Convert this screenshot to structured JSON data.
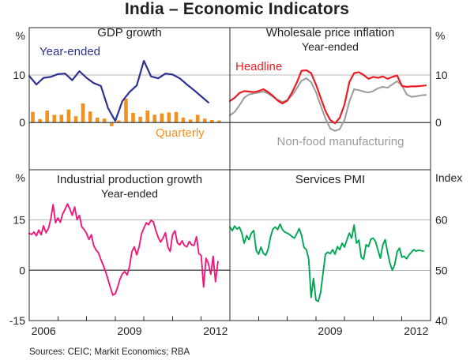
{
  "page": {
    "title": "India – Economic Indicators",
    "source_note": "Sources: CEIC; Markit Economics; RBA"
  },
  "colors": {
    "blue": "#2e3192",
    "orange": "#f4911e",
    "red": "#ed1c24",
    "gray": "#9b9b9b",
    "magenta": "#ed1a7b",
    "green": "#00a651",
    "grid": "#b9b9b9",
    "zero_line": "#58595b",
    "border": "#2b2a29",
    "text": "#231f20"
  },
  "chart_data": [
    {
      "type": "line+bar",
      "title": "GDP growth",
      "position": "top-left",
      "unit": "%",
      "xlim": [
        2006,
        2013
      ],
      "ylim": [
        -10,
        20
      ],
      "gridlines": [
        {
          "value": 10,
          "dark": false
        },
        {
          "value": 0,
          "dark": true
        }
      ],
      "ytick_labels": [
        {
          "value": 10,
          "label": "10"
        },
        {
          "value": 0,
          "label": "0"
        }
      ],
      "xticks": [],
      "xtick_labels": [],
      "series": [
        {
          "name": "Quarterly",
          "type": "bar",
          "color_key": "orange",
          "x_start": 2006.125,
          "x_step": 0.25,
          "values": [
            2.2,
            0.7,
            2.5,
            1.6,
            1.6,
            2.7,
            1.3,
            4.0,
            2.3,
            1.0,
            0.8,
            -0.8,
            0.4,
            5.0,
            2.0,
            1.2,
            2.5,
            1.6,
            1.9,
            2.1,
            2.2,
            1.0,
            0.6,
            1.6,
            0.8,
            0.5,
            0.4
          ]
        },
        {
          "name": "Year-ended",
          "type": "line",
          "color_key": "blue",
          "width": 2.2,
          "x_start": 2006.0,
          "x_step": 0.25,
          "values": [
            9.8,
            8.0,
            9.4,
            9.6,
            10.2,
            10.3,
            8.9,
            10.8,
            9.4,
            8.3,
            7.7,
            3.0,
            0.3,
            4.5,
            6.4,
            7.8,
            13.0,
            9.7,
            9.3,
            10.3,
            10.1,
            9.3,
            8.0,
            6.8,
            5.5,
            4.2
          ]
        }
      ]
    },
    {
      "type": "line",
      "title": "Wholesale price inflation",
      "subtitle": "Year-ended",
      "position": "top-right",
      "unit": "%",
      "xlim": [
        2006,
        2013
      ],
      "ylim": [
        -10,
        20
      ],
      "gridlines": [
        {
          "value": 10,
          "dark": false
        },
        {
          "value": 0,
          "dark": true
        }
      ],
      "ytick_labels": [
        {
          "value": 10,
          "label": "10"
        },
        {
          "value": 0,
          "label": "0"
        }
      ],
      "xticks": [],
      "xtick_labels": [],
      "series": [
        {
          "name": "Non-food manufacturing",
          "type": "line",
          "color_key": "gray",
          "width": 2,
          "x_start": 2006.0,
          "x_step": 0.16667,
          "values": [
            1.5,
            2.2,
            3.6,
            5.2,
            5.9,
            6.1,
            6.3,
            6.5,
            6.1,
            5.4,
            4.8,
            4.3,
            4.7,
            5.7,
            7.2,
            8.8,
            9.3,
            8.5,
            6.4,
            3.6,
            0.8,
            -1.3,
            -1.8,
            -1.4,
            0.5,
            4.4,
            7.0,
            6.8,
            6.5,
            6.3,
            6.6,
            7.2,
            7.5,
            7.3,
            8.0,
            8.7,
            7.8,
            5.9,
            5.4,
            5.5,
            5.7,
            5.8
          ]
        },
        {
          "name": "Headline",
          "type": "line",
          "color_key": "red",
          "width": 2.2,
          "x_start": 2006.0,
          "x_step": 0.16667,
          "values": [
            4.5,
            5.2,
            6.2,
            6.6,
            6.5,
            6.4,
            6.6,
            7.0,
            6.4,
            5.6,
            4.6,
            4.0,
            4.6,
            6.3,
            8.4,
            10.9,
            11.0,
            10.4,
            8.0,
            5.2,
            2.4,
            0.5,
            -0.2,
            1.0,
            3.8,
            8.5,
            10.4,
            10.6,
            10.0,
            9.2,
            9.6,
            9.4,
            9.7,
            9.2,
            9.6,
            9.9,
            7.7,
            7.5,
            7.6,
            7.6,
            7.7,
            7.8
          ]
        }
      ]
    },
    {
      "type": "line",
      "title": "Industrial production growth",
      "subtitle": "Year-ended",
      "position": "bottom-left",
      "unit": "%",
      "xlim": [
        2006,
        2013
      ],
      "ylim": [
        -15,
        30
      ],
      "gridlines": [
        {
          "value": 15,
          "dark": false
        },
        {
          "value": 0,
          "dark": true
        }
      ],
      "ytick_labels": [
        {
          "value": 15,
          "label": "15"
        },
        {
          "value": 0,
          "label": "0"
        },
        {
          "value": -15,
          "label": "-15"
        }
      ],
      "xticks": [
        2007,
        2008,
        2009,
        2010,
        2011,
        2012
      ],
      "xtick_labels": [
        {
          "x": 2006.5,
          "label": "2006"
        },
        {
          "x": 2009.5,
          "label": "2009"
        },
        {
          "x": 2012.5,
          "label": "2012"
        }
      ],
      "series": [
        {
          "name": "Year-ended",
          "type": "line",
          "color_key": "magenta",
          "width": 1.9,
          "x_start": 2006.0,
          "x_step": 0.08333,
          "values": [
            11.0,
            10.7,
            11.4,
            10.3,
            12.0,
            10.6,
            13.3,
            11.2,
            12.4,
            15.2,
            19.6,
            14.2,
            15.6,
            14.3,
            16.8,
            18.2,
            19.8,
            18.3,
            16.4,
            18.9,
            15.1,
            16.4,
            13.0,
            12.2,
            11.0,
            9.2,
            10.6,
            7.4,
            6.0,
            5.2,
            3.2,
            1.5,
            -0.5,
            -2.8,
            -5.2,
            -7.4,
            -7.0,
            -5.0,
            -2.6,
            -1.0,
            -0.4,
            -1.4,
            1.2,
            5.6,
            7.0,
            4.6,
            7.0,
            10.8,
            12.6,
            14.2,
            13.6,
            15.0,
            14.4,
            11.8,
            9.8,
            8.4,
            9.6,
            11.2,
            7.0,
            5.6,
            10.6,
            11.8,
            8.2,
            7.6,
            8.8,
            7.4,
            7.0,
            8.6,
            7.6,
            7.4,
            10.0,
            5.0,
            4.4,
            -5.0,
            3.6,
            2.0,
            -1.2,
            4.2,
            -3.4,
            2.6
          ]
        }
      ]
    },
    {
      "type": "line",
      "title": "Services PMI",
      "position": "bottom-right",
      "unit": "Index",
      "xlim": [
        2006,
        2013
      ],
      "ylim": [
        40,
        70
      ],
      "gridlines": [
        {
          "value": 60,
          "dark": false
        },
        {
          "value": 50,
          "dark": false
        }
      ],
      "ytick_labels": [
        {
          "value": 60,
          "label": "60"
        },
        {
          "value": 50,
          "label": "50"
        },
        {
          "value": 40,
          "label": "40"
        }
      ],
      "xticks": [
        2007,
        2008,
        2009,
        2010,
        2011,
        2012
      ],
      "xtick_labels": [
        {
          "x": 2009.5,
          "label": "2009"
        },
        {
          "x": 2012.5,
          "label": "2012"
        }
      ],
      "series": [
        {
          "name": "Services PMI",
          "type": "line",
          "color_key": "green",
          "width": 1.9,
          "x_start": 2006.0,
          "x_step": 0.08333,
          "values": [
            58.6,
            57.9,
            58.8,
            58.2,
            58.6,
            57.4,
            55.4,
            56.9,
            56.1,
            57.4,
            57.9,
            54.0,
            53.2,
            54.6,
            53.4,
            53.0,
            54.2,
            56.6,
            58.2,
            58.6,
            58.1,
            59.2,
            58.1,
            57.6,
            57.4,
            57.1,
            56.7,
            56.4,
            57.3,
            58.3,
            57.0,
            54.6,
            54.1,
            52.2,
            44.6,
            48.4,
            44.1,
            43.8,
            45.6,
            49.4,
            53.2,
            53.6,
            53.3,
            54.1,
            53.2,
            54.7,
            54.1,
            55.4,
            54.6,
            56.1,
            57.4,
            56.4,
            59.0,
            55.4,
            56.0,
            52.6,
            52.2,
            55.1,
            54.7,
            56.2,
            56.4,
            55.7,
            54.0,
            52.4,
            55.0,
            56.1,
            53.6,
            51.4,
            50.0,
            51.1,
            53.7,
            54.4,
            52.6,
            52.8,
            52.3,
            53.1,
            53.6,
            54.1,
            53.8,
            54.0,
            53.9,
            53.8
          ]
        }
      ]
    }
  ]
}
